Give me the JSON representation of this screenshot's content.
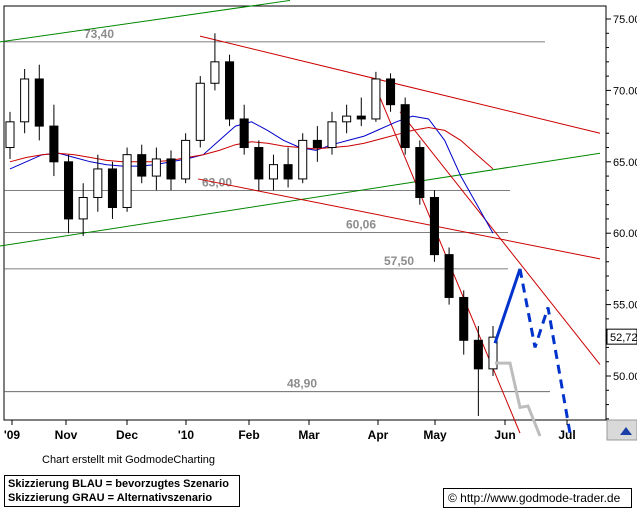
{
  "chart_data": {
    "type": "candlestick",
    "title": "",
    "x_labels": [
      "'09",
      "Nov",
      "Dec",
      "'10",
      "Feb",
      "Mar",
      "Apr",
      "May",
      "Jun",
      "Jul"
    ],
    "y_ticks": [
      50.0,
      55.0,
      60.0,
      65.0,
      70.0,
      75.0
    ],
    "ylim": [
      45.8,
      76.5
    ],
    "last_price": "52,72",
    "levels": [
      {
        "value": 73.4,
        "label": "73,40"
      },
      {
        "value": 63.0,
        "label": "63,00"
      },
      {
        "value": 60.06,
        "label": "60,06"
      },
      {
        "value": 57.5,
        "label": "57,50"
      },
      {
        "value": 48.9,
        "label": "48,90"
      }
    ],
    "ohlc_series": [
      {
        "date": "Oct 09",
        "open": 66.0,
        "high": 68.5,
        "low": 65.2,
        "close": 67.8
      },
      {
        "date": "Oct 09",
        "open": 67.8,
        "high": 71.5,
        "low": 67.0,
        "close": 70.8
      },
      {
        "date": "Oct 09",
        "open": 70.8,
        "high": 71.8,
        "low": 66.5,
        "close": 67.5
      },
      {
        "date": "Oct 09",
        "open": 67.5,
        "high": 69.0,
        "low": 64.0,
        "close": 65.0
      },
      {
        "date": "Nov 09",
        "open": 65.0,
        "high": 65.5,
        "low": 60.0,
        "close": 61.0
      },
      {
        "date": "Nov 09",
        "open": 61.0,
        "high": 63.5,
        "low": 59.8,
        "close": 62.5
      },
      {
        "date": "Nov 09",
        "open": 62.5,
        "high": 65.5,
        "low": 61.5,
        "close": 64.5
      },
      {
        "date": "Nov 09",
        "open": 64.5,
        "high": 65.0,
        "low": 61.0,
        "close": 61.8
      },
      {
        "date": "Nov 09",
        "open": 61.8,
        "high": 66.0,
        "low": 61.5,
        "close": 65.5
      },
      {
        "date": "Dec 09",
        "open": 65.5,
        "high": 66.2,
        "low": 63.5,
        "close": 64.0
      },
      {
        "date": "Dec 09",
        "open": 64.0,
        "high": 66.0,
        "low": 63.0,
        "close": 65.2
      },
      {
        "date": "Dec 09",
        "open": 65.2,
        "high": 65.8,
        "low": 63.0,
        "close": 63.8
      },
      {
        "date": "Dec 09",
        "open": 63.8,
        "high": 67.0,
        "low": 63.5,
        "close": 66.5
      },
      {
        "date": "Jan 10",
        "open": 66.5,
        "high": 71.0,
        "low": 66.0,
        "close": 70.5
      },
      {
        "date": "Jan 10",
        "open": 70.5,
        "high": 74.0,
        "low": 70.0,
        "close": 72.0
      },
      {
        "date": "Jan 10",
        "open": 72.0,
        "high": 72.5,
        "low": 67.5,
        "close": 68.0
      },
      {
        "date": "Jan 10",
        "open": 68.0,
        "high": 69.0,
        "low": 65.5,
        "close": 66.0
      },
      {
        "date": "Feb 10",
        "open": 66.0,
        "high": 66.5,
        "low": 63.0,
        "close": 63.8
      },
      {
        "date": "Feb 10",
        "open": 63.8,
        "high": 65.5,
        "low": 63.0,
        "close": 64.8
      },
      {
        "date": "Feb 10",
        "open": 64.8,
        "high": 66.0,
        "low": 63.2,
        "close": 63.8
      },
      {
        "date": "Feb 10",
        "open": 63.8,
        "high": 67.0,
        "low": 63.5,
        "close": 66.5
      },
      {
        "date": "Mar 10",
        "open": 66.5,
        "high": 67.5,
        "low": 65.0,
        "close": 66.0
      },
      {
        "date": "Mar 10",
        "open": 66.0,
        "high": 68.5,
        "low": 65.5,
        "close": 67.8
      },
      {
        "date": "Mar 10",
        "open": 67.8,
        "high": 69.0,
        "low": 67.0,
        "close": 68.2
      },
      {
        "date": "Mar 10",
        "open": 68.2,
        "high": 69.5,
        "low": 67.5,
        "close": 68.0
      },
      {
        "date": "Apr 10",
        "open": 68.0,
        "high": 71.3,
        "low": 67.8,
        "close": 70.8
      },
      {
        "date": "Apr 10",
        "open": 70.8,
        "high": 71.2,
        "low": 68.5,
        "close": 69.0
      },
      {
        "date": "Apr 10",
        "open": 69.0,
        "high": 69.5,
        "low": 65.5,
        "close": 66.0
      },
      {
        "date": "Apr 10",
        "open": 66.0,
        "high": 66.5,
        "low": 62.0,
        "close": 62.5
      },
      {
        "date": "May 10",
        "open": 62.5,
        "high": 63.0,
        "low": 58.0,
        "close": 58.5
      },
      {
        "date": "May 10",
        "open": 58.5,
        "high": 59.0,
        "low": 55.0,
        "close": 55.5
      },
      {
        "date": "May 10",
        "open": 55.5,
        "high": 56.0,
        "low": 51.5,
        "close": 52.5
      },
      {
        "date": "May 10",
        "open": 52.5,
        "high": 53.5,
        "low": 47.2,
        "close": 50.5
      },
      {
        "date": "Jun 10",
        "open": 50.5,
        "high": 53.5,
        "low": 50.0,
        "close": 52.72
      }
    ],
    "moving_averages": [
      {
        "color": "#0000cc",
        "values": [
          64.5,
          65.0,
          65.5,
          65.6,
          65.3,
          65.0,
          64.8,
          64.7,
          64.7,
          64.8,
          65.0,
          65.2,
          65.5,
          66.5,
          67.5,
          67.8,
          67.2,
          66.5,
          66.0,
          65.8,
          66.2,
          66.5,
          66.8,
          67.3,
          67.8,
          68.2,
          68.0,
          66.5,
          64.0,
          62.0,
          60.0
        ]
      },
      {
        "color": "#cc0000",
        "values": [
          65.0,
          65.3,
          65.5,
          65.6,
          65.5,
          65.3,
          65.1,
          65.0,
          65.0,
          65.0,
          65.1,
          65.3,
          65.5,
          65.8,
          66.2,
          66.4,
          66.3,
          66.1,
          66.0,
          65.9,
          66.0,
          66.1,
          66.3,
          66.6,
          66.9,
          67.2,
          67.4,
          67.2,
          66.5,
          65.5,
          64.5
        ]
      }
    ],
    "trendlines": [
      {
        "color": "#008800",
        "points": [
          [
            0,
            73.4
          ],
          [
            290,
            76.3
          ]
        ]
      },
      {
        "color": "#008800",
        "points": [
          [
            0,
            59.1
          ],
          [
            600,
            65.6
          ]
        ]
      },
      {
        "color": "#cc0000",
        "points": [
          [
            200,
            73.8
          ],
          [
            600,
            67.0
          ]
        ]
      },
      {
        "color": "#cc0000",
        "points": [
          [
            198,
            63.8
          ],
          [
            600,
            58.2
          ]
        ]
      },
      {
        "color": "#cc0000",
        "points": [
          [
            400,
            68.5
          ],
          [
            600,
            50.8
          ]
        ]
      },
      {
        "color": "#cc0000",
        "points": [
          [
            380,
            69.5
          ],
          [
            520,
            46.0
          ]
        ]
      }
    ],
    "scenario_blue": [
      [
        495,
        52.3
      ],
      [
        520,
        57.5
      ],
      [
        535,
        52.0
      ],
      [
        548,
        54.8
      ],
      [
        570,
        46.0
      ]
    ],
    "scenario_grey": [
      [
        495,
        50.9
      ],
      [
        510,
        50.9
      ],
      [
        520,
        47.8
      ],
      [
        528,
        47.9
      ],
      [
        540,
        45.8
      ]
    ]
  },
  "footer": {
    "credit": "Chart erstellt mit GodmodeCharting",
    "legend_line1": "Skizzierung BLAU = bevorzugtes Szenario",
    "legend_line2": "Skizzierung GRAU = Alternativszenario",
    "url": "© http://www.godmode-trader.de"
  }
}
